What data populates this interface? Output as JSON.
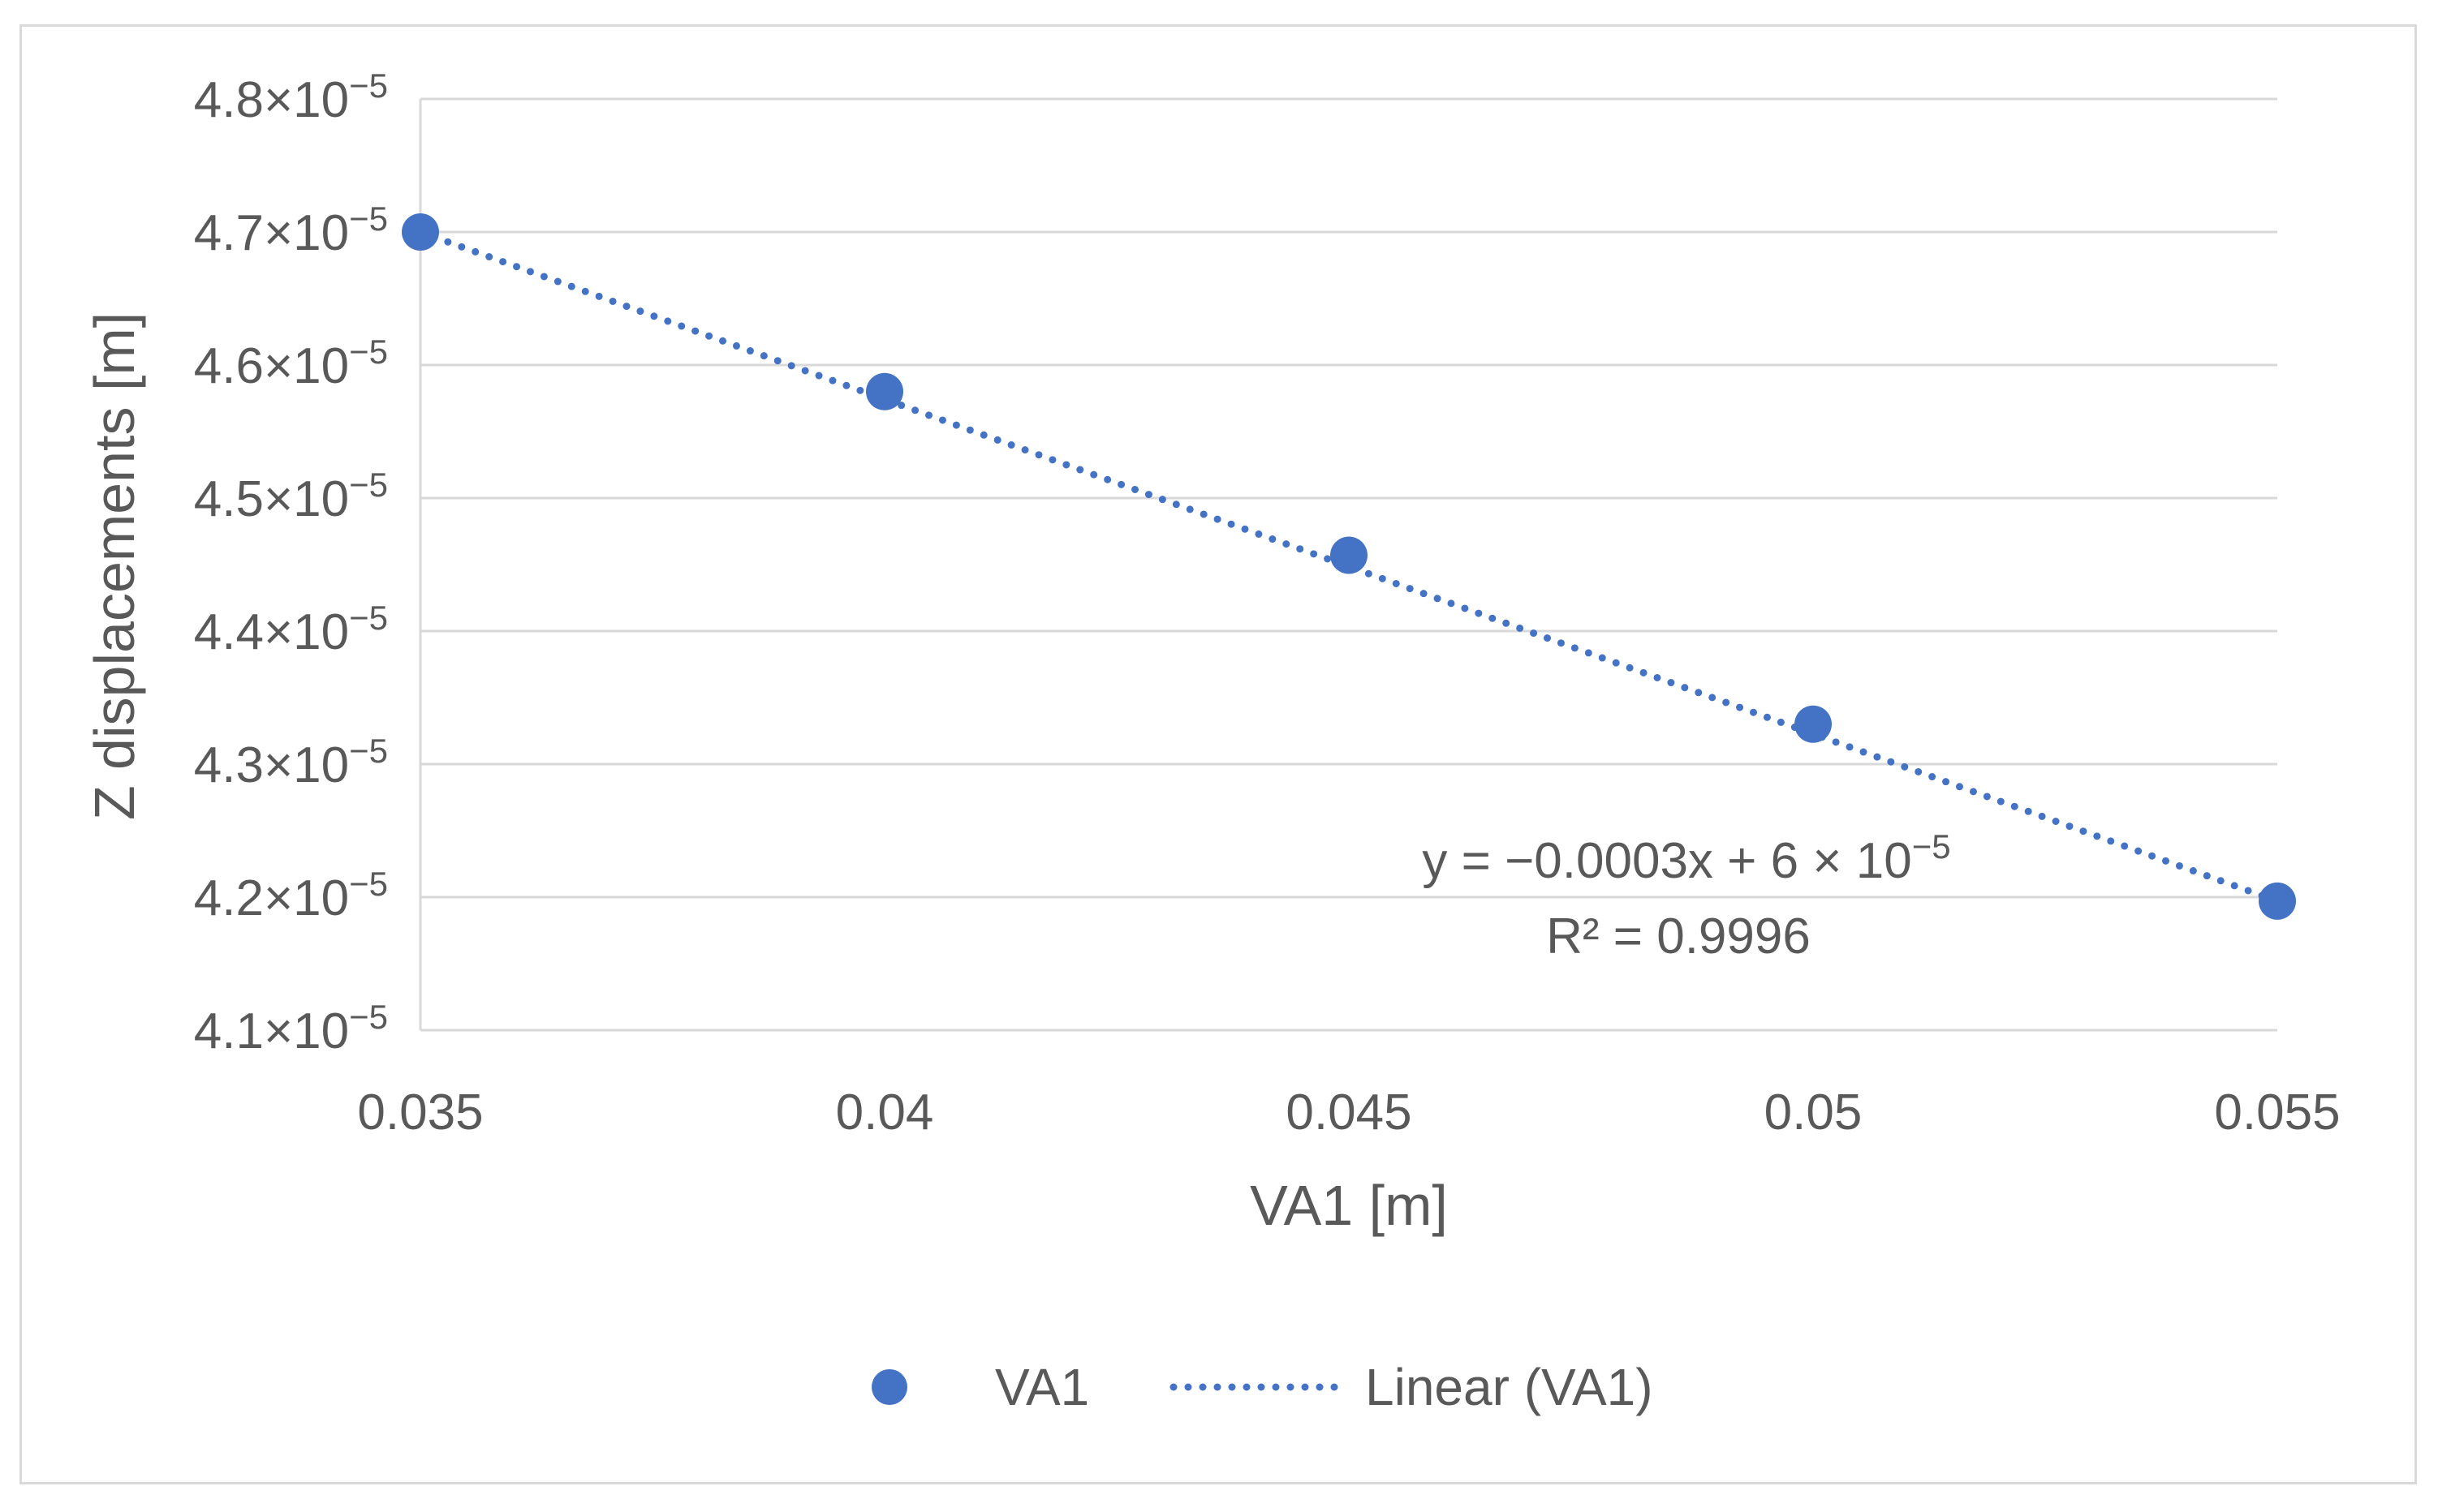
{
  "chart_data": {
    "type": "scatter",
    "title": "",
    "xlabel": "VA1 [m]",
    "ylabel": "Z displacements [m]",
    "xlim": [
      0.035,
      0.055
    ],
    "ylim": [
      4.1e-05,
      4.8e-05
    ],
    "x_ticks": [
      0.035,
      0.04,
      0.045,
      0.05,
      0.055
    ],
    "x_tick_labels": [
      "0.035",
      "0.04",
      "0.045",
      "0.05",
      "0.055"
    ],
    "y_ticks": [
      4.1e-05,
      4.2e-05,
      4.3e-05,
      4.4e-05,
      4.5e-05,
      4.6e-05,
      4.7e-05,
      4.8e-05
    ],
    "y_tick_mantissas": [
      "4.1×10",
      "4.2×10",
      "4.3×10",
      "4.4×10",
      "4.5×10",
      "4.6×10",
      "4.7×10",
      "4.8×10"
    ],
    "y_tick_exponent": "−5",
    "grid": true,
    "legend_position": "bottom",
    "series": [
      {
        "name": "VA1",
        "color": "#4472c4",
        "x": [
          0.035,
          0.04,
          0.045,
          0.05,
          0.055
        ],
        "y": [
          4.7e-05,
          4.58e-05,
          4.457e-05,
          4.33e-05,
          4.197e-05
        ]
      }
    ],
    "trendline": {
      "name": "Linear (VA1)",
      "type": "linear",
      "style": "dotted",
      "color": "#4472c4",
      "x_start": 0.035,
      "y_start": 4.7e-05,
      "x_end": 0.055,
      "y_end": 4.197e-05,
      "equation_main": "y = −0.0003x + 6 × 10",
      "equation_exponent": "−5",
      "r2_label": "R² = 0.9996"
    }
  }
}
